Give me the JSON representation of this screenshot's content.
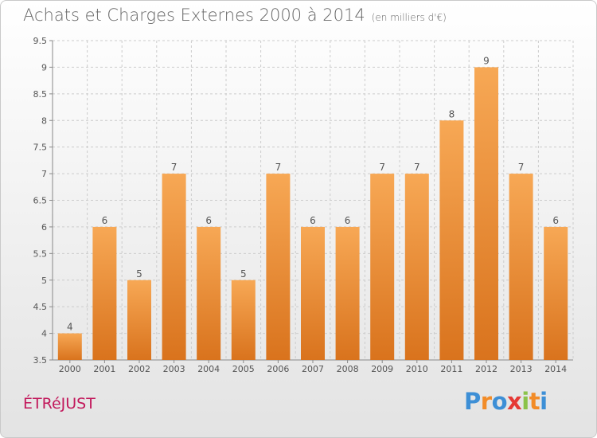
{
  "header": {
    "title": "Achats et Charges Externes 2000 à 2014",
    "unit": "(en milliers d'€)"
  },
  "footer": {
    "commune": "ÉTRéJUST",
    "logo": {
      "letters": [
        "P",
        "r",
        "o",
        "x",
        "i",
        "t",
        "i"
      ],
      "colors": [
        "#3d8fd6",
        "#f28c28",
        "#3d8fd6",
        "#e53935",
        "#8bc34a",
        "#f28c28",
        "#3d8fd6"
      ]
    }
  },
  "colors": {
    "bar_top": "#f7a855",
    "bar_bottom": "#d9731d",
    "grid": "#cccccc",
    "axis": "#888888"
  },
  "chart_data": {
    "type": "bar",
    "categories": [
      "2000",
      "2001",
      "2002",
      "2003",
      "2004",
      "2005",
      "2006",
      "2007",
      "2008",
      "2009",
      "2010",
      "2011",
      "2012",
      "2013",
      "2014"
    ],
    "values": [
      4,
      6,
      5,
      7,
      6,
      5,
      7,
      6,
      6,
      7,
      7,
      8,
      9,
      7,
      6
    ],
    "data_labels": [
      "4",
      "6",
      "5",
      "7",
      "6",
      "5",
      "7",
      "6",
      "6",
      "7",
      "7",
      "8",
      "9",
      "7",
      "6"
    ],
    "ylim": [
      3.5,
      9.5
    ],
    "yticks": [
      3.5,
      4,
      4.5,
      5,
      5.5,
      6,
      6.5,
      7,
      7.5,
      8,
      8.5,
      9,
      9.5
    ],
    "ytick_labels": [
      "3.5",
      "4",
      "4.5",
      "5",
      "5.5",
      "6",
      "6.5",
      "7",
      "7.5",
      "8",
      "8.5",
      "9",
      "9.5"
    ],
    "grid": true,
    "legend": "none"
  }
}
